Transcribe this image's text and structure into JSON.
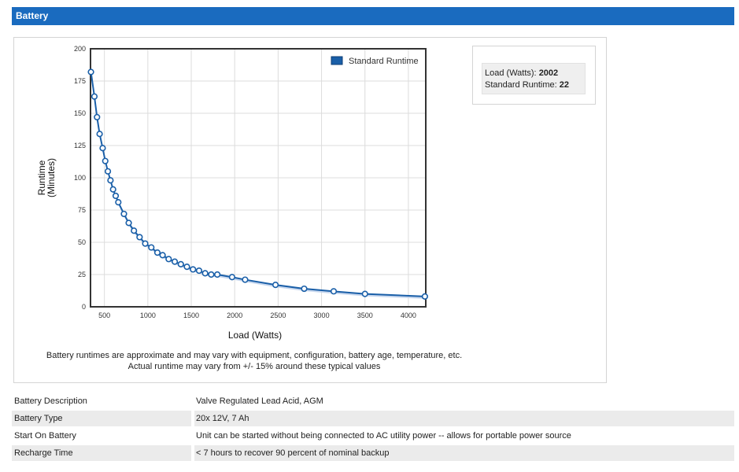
{
  "header": {
    "title": "Battery"
  },
  "tooltip": {
    "load_label": "Load (Watts):",
    "load_value": "2002",
    "runtime_label": "Standard Runtime:",
    "runtime_value": "22"
  },
  "disclaimer": {
    "line1": "Battery runtimes are approximate and may vary with equipment, configuration, battery age, temperature, etc.",
    "line2": "Actual runtime may vary from +/- 15% around these typical values"
  },
  "specs": [
    {
      "label": "Battery Description",
      "value": "Valve Regulated Lead Acid, AGM"
    },
    {
      "label": "Battery Type",
      "value": "20x 12V, 7 Ah"
    },
    {
      "label": "Start On Battery",
      "value": "Unit can be started without being connected to AC utility power -- allows for portable power source"
    },
    {
      "label": "Recharge Time",
      "value": "< 7 hours to recover 90 percent of nominal backup"
    }
  ],
  "colors": {
    "header_bg": "#1a6bbf",
    "series": "#1a5fa8",
    "marker_fill": "#ffffff",
    "band": "#b9cdea"
  },
  "chart_data": {
    "type": "line",
    "title": "",
    "xlabel": "Load (Watts)",
    "ylabel_line1": "Runtime",
    "ylabel_line2": "(Minutes)",
    "xlim": [
      340,
      4200
    ],
    "ylim": [
      0,
      200
    ],
    "x_ticks": [
      500,
      1000,
      1500,
      2000,
      2500,
      3000,
      3500,
      4000
    ],
    "y_ticks": [
      0,
      25,
      50,
      75,
      100,
      125,
      150,
      175,
      200
    ],
    "grid": true,
    "legend": {
      "position": "top-right",
      "entries": [
        "Standard Runtime"
      ]
    },
    "series": [
      {
        "name": "Standard Runtime",
        "x": [
          345,
          385,
          415,
          445,
          480,
          510,
          540,
          570,
          600,
          630,
          660,
          725,
          780,
          840,
          905,
          970,
          1040,
          1110,
          1170,
          1240,
          1310,
          1380,
          1450,
          1520,
          1590,
          1660,
          1730,
          1800,
          1970,
          2120,
          2470,
          2800,
          3140,
          3500,
          4190
        ],
        "y": [
          182,
          163,
          147,
          134,
          123,
          113,
          105,
          98,
          91,
          86,
          81,
          72,
          65,
          59,
          54,
          49,
          46,
          42,
          40,
          37,
          35,
          33,
          31,
          29,
          28,
          26,
          25,
          25,
          23,
          21,
          17,
          14,
          12,
          10,
          8
        ]
      }
    ]
  }
}
